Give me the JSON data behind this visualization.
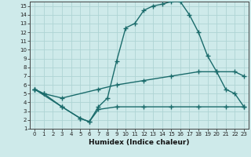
{
  "xlabel": "Humidex (Indice chaleur)",
  "ylabel": "",
  "bg_color": "#ceeaea",
  "grid_color": "#aed4d4",
  "line_color": "#1a6b6b",
  "xlim": [
    -0.5,
    23.5
  ],
  "ylim": [
    1,
    15.5
  ],
  "xticks": [
    0,
    1,
    2,
    3,
    4,
    5,
    6,
    7,
    8,
    9,
    10,
    11,
    12,
    13,
    14,
    15,
    16,
    17,
    18,
    19,
    20,
    21,
    22,
    23
  ],
  "yticks": [
    1,
    2,
    3,
    4,
    5,
    6,
    7,
    8,
    9,
    10,
    11,
    12,
    13,
    14,
    15
  ],
  "line1_x": [
    0,
    1,
    3,
    5,
    6,
    7,
    8,
    9,
    10,
    11,
    12,
    13,
    14,
    15,
    16,
    17,
    18,
    19,
    20,
    21,
    22,
    23
  ],
  "line1_y": [
    5.5,
    5.0,
    3.5,
    2.2,
    1.8,
    3.5,
    4.5,
    8.7,
    12.5,
    13.0,
    14.5,
    15.0,
    15.2,
    15.5,
    15.5,
    14.0,
    12.0,
    9.3,
    7.5,
    5.5,
    5.0,
    3.5
  ],
  "line2_x": [
    0,
    1,
    3,
    7,
    9,
    12,
    15,
    18,
    20,
    22,
    23
  ],
  "line2_y": [
    5.5,
    5.0,
    4.5,
    5.5,
    6.0,
    6.5,
    7.0,
    7.5,
    7.5,
    7.5,
    7.0
  ],
  "line3_x": [
    0,
    3,
    5,
    6,
    7,
    9,
    12,
    15,
    18,
    21,
    23
  ],
  "line3_y": [
    5.5,
    3.5,
    2.2,
    1.8,
    3.2,
    3.5,
    3.5,
    3.5,
    3.5,
    3.5,
    3.5
  ],
  "marker": "+",
  "marker_size": 4,
  "linewidth": 1.0
}
